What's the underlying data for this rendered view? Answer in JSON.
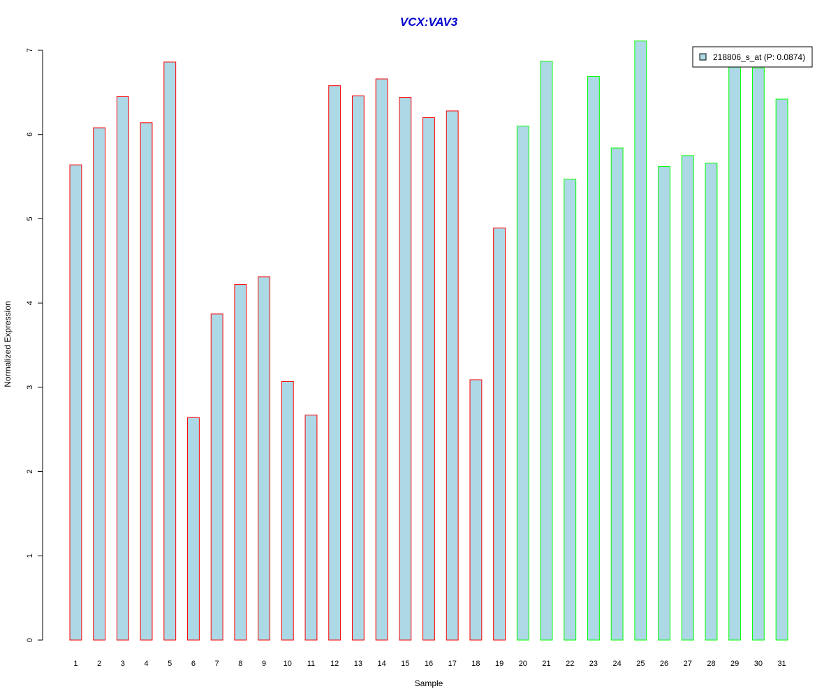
{
  "chart_data": {
    "type": "bar",
    "title": "VCX:VAV3",
    "xlabel": "Sample",
    "ylabel": "Normalized Expression",
    "categories": [
      "1",
      "2",
      "3",
      "4",
      "5",
      "6",
      "7",
      "8",
      "9",
      "10",
      "11",
      "12",
      "13",
      "14",
      "15",
      "16",
      "17",
      "18",
      "19",
      "20",
      "21",
      "22",
      "23",
      "24",
      "25",
      "26",
      "27",
      "28",
      "29",
      "30",
      "31"
    ],
    "series": [
      {
        "name": "218806_s_at (P: 0.0874)",
        "values": [
          5.64,
          6.08,
          6.45,
          6.14,
          6.86,
          2.64,
          3.87,
          4.22,
          4.31,
          3.07,
          2.67,
          6.58,
          6.46,
          6.66,
          6.44,
          6.2,
          6.28,
          3.09,
          4.89,
          6.1,
          6.87,
          5.47,
          6.69,
          5.84,
          7.11,
          5.62,
          5.75,
          5.66,
          6.8,
          6.79,
          6.42
        ]
      }
    ],
    "yticks": [
      "0",
      "1",
      "2",
      "3",
      "4",
      "5",
      "6",
      "7"
    ],
    "ylim": [
      0,
      7.15
    ],
    "legend_position": "top-right",
    "grid": false,
    "colors": {
      "bar_fill": "#add8e6",
      "group1_border": "#ff0000",
      "group2_border": "#00ff00",
      "title": "#0000cd"
    },
    "group1_count": 19
  }
}
